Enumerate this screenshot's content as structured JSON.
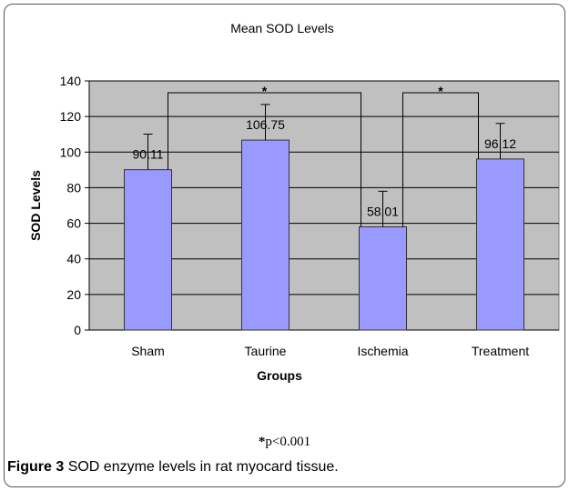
{
  "chart_data": {
    "type": "bar",
    "title": "Mean SOD Levels",
    "x_label": "Groups",
    "y_label": "SOD Levels",
    "categories": [
      "Sham",
      "Taurine",
      "Ischemia",
      "Treatment"
    ],
    "values": [
      90.11,
      106.75,
      58.01,
      96.12
    ],
    "errors": [
      20,
      20,
      20,
      20
    ],
    "color": "#9999ff",
    "ylim": [
      0,
      140
    ],
    "yticks": [
      0,
      20,
      40,
      60,
      80,
      100,
      120,
      140
    ],
    "significance": [
      {
        "groups": [
          "Sham",
          "Ischemia"
        ],
        "label": "*"
      },
      {
        "groups": [
          "Ischemia",
          "Treatment"
        ],
        "label": "*"
      }
    ],
    "footnote": {
      "symbol": "*",
      "text": "p<0.001"
    },
    "caption": {
      "label": "Figure 3",
      "text": "SOD enzyme levels in rat myocard tissue."
    }
  }
}
